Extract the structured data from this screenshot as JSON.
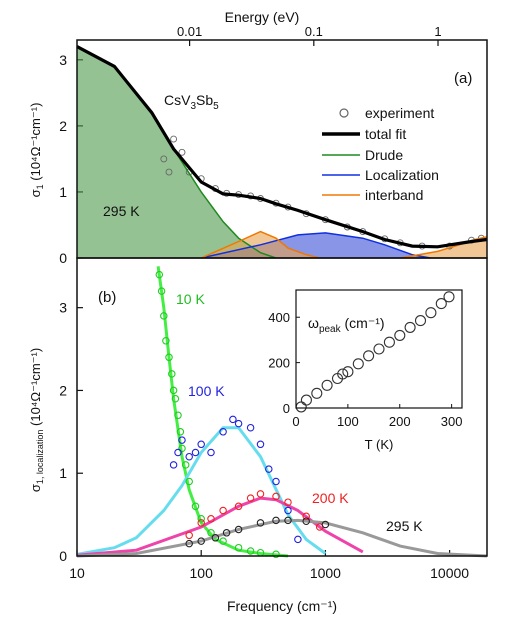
{
  "chart_data": [
    {
      "panel_label": "(a)",
      "type": "area",
      "top_axis_label": "Energy (eV)",
      "top_axis_ticks": [
        "0.01",
        "0.1",
        "1"
      ],
      "top_axis_tick_values_eV": [
        0.01,
        0.1,
        1
      ],
      "ylabel_main": "σ",
      "ylabel_sub": "1",
      "ylabel_units": "(10⁴Ω⁻¹cm⁻¹)",
      "ylim": [
        0,
        3.3
      ],
      "yticks": [
        0,
        1,
        2,
        3
      ],
      "xlim": [
        10,
        20000
      ],
      "xscale": "log",
      "sample": {
        "base": "CsV",
        "s1": "3",
        "mid": "Sb",
        "s2": "5"
      },
      "temperature_label": "295 K",
      "legend": [
        "experiment",
        "total fit",
        "Drude",
        "Localization",
        "interband"
      ],
      "legend_position": "right",
      "colors": {
        "drude_fill": "#4f9a4b",
        "drude_line": "#1f8a1f",
        "loc_fill": "#3a4fd6",
        "loc_line": "#1030e0",
        "inter_fill": "#e8a34f",
        "inter_line": "#f07800",
        "total": "#000000",
        "experiment": "#666666"
      },
      "series": [
        {
          "name": "Drude",
          "x": [
            10,
            20,
            40,
            60,
            100,
            150,
            200,
            300,
            400
          ],
          "y": [
            3.2,
            2.9,
            2.2,
            1.65,
            1.0,
            0.55,
            0.3,
            0.08,
            0.0
          ]
        },
        {
          "name": "Localization",
          "x": [
            100,
            300,
            600,
            1000,
            2000,
            3000,
            5000,
            7000
          ],
          "y": [
            0.0,
            0.2,
            0.35,
            0.38,
            0.3,
            0.2,
            0.05,
            0.0
          ]
        },
        {
          "name": "interband",
          "x": [
            100,
            200,
            300,
            400,
            500,
            700,
            900
          ],
          "y": [
            0.0,
            0.25,
            0.4,
            0.3,
            0.15,
            0.05,
            0.0
          ]
        },
        {
          "name": "interband",
          "x": [
            4000,
            8000,
            12000,
            16000,
            20000
          ],
          "y": [
            0.0,
            0.1,
            0.2,
            0.28,
            0.32
          ]
        },
        {
          "name": "total fit",
          "x": [
            10,
            20,
            40,
            60,
            100,
            150,
            200,
            300,
            400,
            600,
            1000,
            2000,
            3000,
            5000,
            8000,
            15000,
            20000
          ],
          "y": [
            3.2,
            2.9,
            2.2,
            1.65,
            1.15,
            0.97,
            0.95,
            0.9,
            0.82,
            0.72,
            0.58,
            0.4,
            0.28,
            0.18,
            0.17,
            0.25,
            0.28
          ]
        },
        {
          "name": "experiment",
          "x": [
            50,
            55,
            60,
            70,
            80,
            100,
            130,
            160,
            200,
            250,
            300,
            400,
            500,
            700,
            1000,
            1500,
            2000,
            3000,
            4000,
            6000,
            10000,
            15000,
            18000
          ],
          "y": [
            1.5,
            1.3,
            1.8,
            1.6,
            1.3,
            1.2,
            1.05,
            0.98,
            0.96,
            0.94,
            0.9,
            0.83,
            0.77,
            0.67,
            0.58,
            0.47,
            0.4,
            0.29,
            0.23,
            0.18,
            0.18,
            0.27,
            0.3
          ]
        }
      ]
    },
    {
      "panel_label": "(b)",
      "type": "line",
      "xlabel": "Frequency (cm⁻¹)",
      "ylabel_main": "σ",
      "ylabel_sub": "1, localization",
      "ylabel_units": "(10⁴Ω⁻¹cm⁻¹)",
      "xscale": "log",
      "xlim": [
        10,
        20000
      ],
      "xticks": [
        10,
        100,
        1000,
        10000
      ],
      "xtick_labels": [
        "10",
        "100",
        "1000",
        "10000"
      ],
      "ylim": [
        0,
        3.6
      ],
      "yticks": [
        0,
        1,
        2,
        3
      ],
      "series": [
        {
          "name": "10 K",
          "color": "#22cc22",
          "fit_color": "#44ee44",
          "fit_x": [
            45,
            50,
            55,
            60,
            70,
            80,
            100,
            130,
            200,
            300,
            500
          ],
          "fit_y": [
            3.5,
            3.0,
            2.4,
            1.9,
            1.2,
            0.8,
            0.4,
            0.2,
            0.07,
            0.03,
            0.0
          ],
          "exp_x": [
            46,
            48,
            50,
            52,
            55,
            58,
            60,
            62,
            65,
            68,
            70,
            75,
            80,
            90,
            100,
            120,
            150,
            200,
            250,
            300,
            400
          ],
          "exp_y": [
            3.4,
            3.2,
            2.9,
            2.6,
            2.4,
            2.2,
            2.0,
            1.9,
            1.7,
            1.5,
            1.3,
            1.1,
            0.9,
            0.6,
            0.45,
            0.28,
            0.18,
            0.1,
            0.06,
            0.04,
            0.02
          ]
        },
        {
          "name": "100 K",
          "color": "#2222dd",
          "fit_color": "#66ddee",
          "fit_x": [
            10,
            20,
            30,
            50,
            70,
            100,
            150,
            200,
            300,
            500,
            700,
            1000
          ],
          "fit_y": [
            0.02,
            0.1,
            0.22,
            0.55,
            0.85,
            1.25,
            1.55,
            1.55,
            1.2,
            0.5,
            0.2,
            0.03
          ],
          "exp_x": [
            60,
            65,
            70,
            80,
            90,
            100,
            120,
            150,
            180,
            200,
            250,
            300,
            350,
            400,
            500,
            600
          ],
          "exp_y": [
            1.1,
            1.25,
            1.4,
            1.2,
            1.25,
            1.35,
            1.25,
            1.5,
            1.65,
            1.6,
            1.55,
            1.35,
            1.05,
            0.9,
            0.55,
            0.2
          ]
        },
        {
          "name": "200 K",
          "color": "#ee2222",
          "fit_color": "#ee44aa",
          "fit_x": [
            10,
            30,
            100,
            200,
            300,
            400,
            600,
            1000,
            2000
          ],
          "fit_y": [
            0.01,
            0.07,
            0.35,
            0.6,
            0.7,
            0.68,
            0.55,
            0.3,
            0.05
          ],
          "exp_x": [
            80,
            100,
            120,
            150,
            200,
            250,
            300,
            400,
            500,
            700,
            900
          ],
          "exp_y": [
            0.25,
            0.4,
            0.45,
            0.55,
            0.6,
            0.7,
            0.75,
            0.72,
            0.65,
            0.48,
            0.35
          ]
        },
        {
          "name": "295 K",
          "color": "#222222",
          "fit_color": "#999999",
          "fit_x": [
            10,
            30,
            100,
            200,
            400,
            600,
            1000,
            2000,
            4000,
            8000,
            20000
          ],
          "fit_y": [
            0.0,
            0.03,
            0.18,
            0.32,
            0.42,
            0.43,
            0.4,
            0.28,
            0.12,
            0.03,
            0.0
          ],
          "exp_x": [
            80,
            100,
            130,
            160,
            200,
            300,
            400,
            500,
            700,
            1000
          ],
          "exp_y": [
            0.15,
            0.18,
            0.22,
            0.28,
            0.32,
            0.4,
            0.43,
            0.43,
            0.42,
            0.38
          ]
        }
      ]
    },
    {
      "panel_label": "inset",
      "type": "scatter",
      "ylabel_main": "ω",
      "ylabel_sub": "peak",
      "ylabel_units": " (cm⁻¹)",
      "xlabel": "T (K)",
      "xlim": [
        0,
        320
      ],
      "ylim": [
        0,
        520
      ],
      "xticks": [
        0,
        100,
        200,
        300
      ],
      "yticks": [
        0,
        200,
        400
      ],
      "x": [
        10,
        20,
        40,
        60,
        80,
        90,
        100,
        120,
        140,
        160,
        180,
        200,
        220,
        240,
        260,
        280,
        295
      ],
      "y": [
        5,
        35,
        65,
        100,
        130,
        150,
        160,
        195,
        230,
        260,
        290,
        320,
        355,
        385,
        420,
        460,
        490
      ]
    }
  ]
}
